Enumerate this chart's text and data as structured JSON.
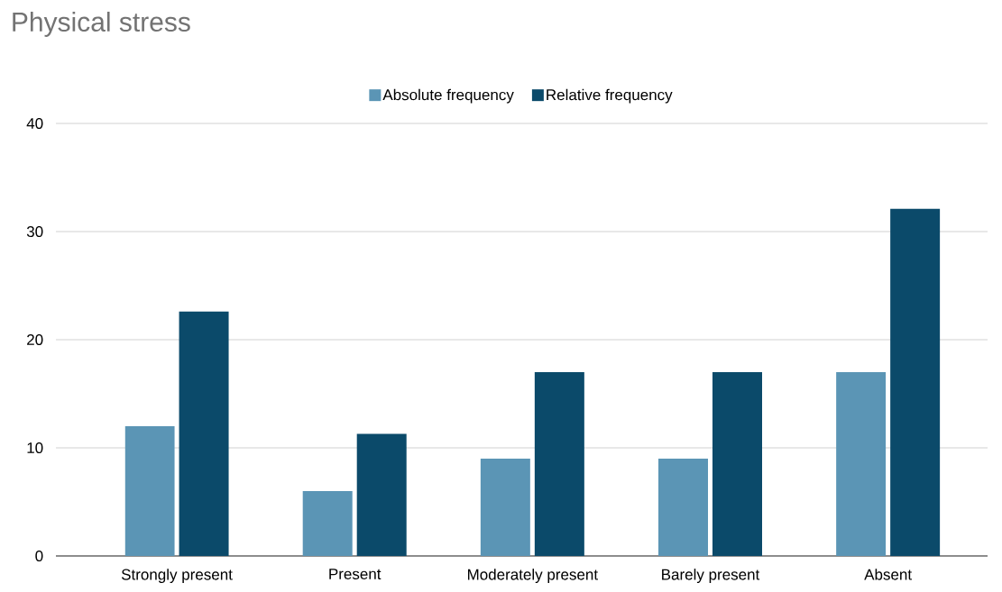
{
  "chart_data": {
    "type": "bar",
    "title": "Physical stress",
    "categories": [
      "Strongly present",
      "Present",
      "Moderately present",
      "Barely present",
      "Absent"
    ],
    "series": [
      {
        "name": "Absolute frequency",
        "color": "#5b95b5",
        "values": [
          12,
          6,
          9,
          9,
          17
        ]
      },
      {
        "name": "Relative frequency",
        "color": "#0b4a6a",
        "values": [
          22.6,
          11.3,
          17,
          17,
          32.1
        ]
      }
    ],
    "ylim": [
      0,
      40
    ],
    "yticks": [
      0,
      10,
      20,
      30,
      40
    ],
    "grid": "y",
    "legend": "top"
  }
}
